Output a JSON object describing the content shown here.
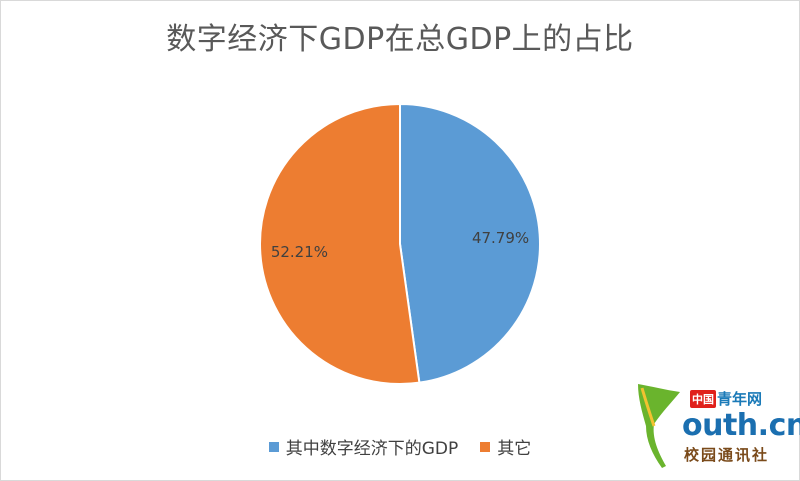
{
  "chart_data": {
    "type": "pie",
    "title": "数字经济下GDP在总GDP上的占比",
    "categories": [
      "其中数字经济下的GDP",
      "其它"
    ],
    "values": [
      47.79,
      52.21
    ],
    "labels": [
      "47.79%",
      "52.21%"
    ],
    "colors": [
      "#5b9bd5",
      "#ed7d31"
    ],
    "legend": "bottom"
  },
  "watermark": {
    "brand_prefix": "中国",
    "brand": "青年网",
    "url": "outh.cn",
    "subtitle": "校园通讯社",
    "icon": "ginkgo-leaf-icon"
  }
}
